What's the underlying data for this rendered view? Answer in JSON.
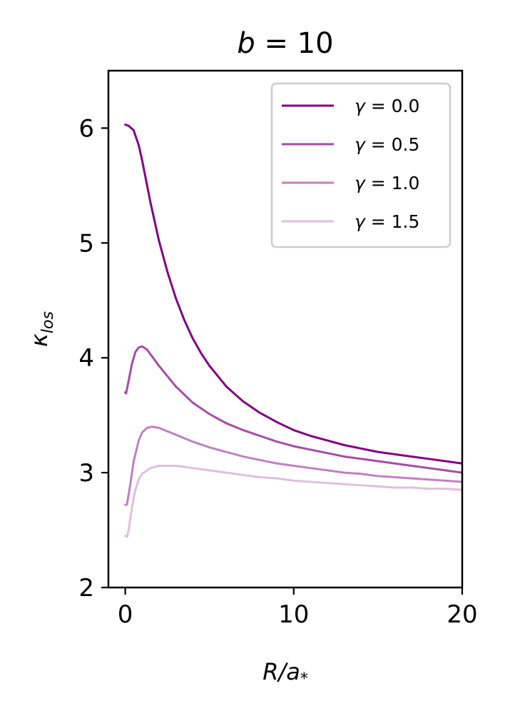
{
  "chart_data": {
    "type": "line",
    "title": "b = 10",
    "xlabel": "R/a*",
    "ylabel": "κ_los",
    "xlim": [
      -1,
      20
    ],
    "ylim": [
      2,
      6.5
    ],
    "xticks": [
      0,
      10,
      20
    ],
    "yticks": [
      2,
      3,
      4,
      5,
      6
    ],
    "grid": false,
    "legend_position": "top-right",
    "series": [
      {
        "name": "γ = 0.0",
        "color": "#800080",
        "points": [
          [
            0,
            6.03
          ],
          [
            0.2,
            6.02
          ],
          [
            0.5,
            5.98
          ],
          [
            0.8,
            5.85
          ],
          [
            1.0,
            5.72
          ],
          [
            1.5,
            5.35
          ],
          [
            2.0,
            5.02
          ],
          [
            2.5,
            4.75
          ],
          [
            3.0,
            4.52
          ],
          [
            3.5,
            4.33
          ],
          [
            4.0,
            4.17
          ],
          [
            4.5,
            4.04
          ],
          [
            5.0,
            3.93
          ],
          [
            6.0,
            3.75
          ],
          [
            7.0,
            3.62
          ],
          [
            8.0,
            3.52
          ],
          [
            9.0,
            3.44
          ],
          [
            10.0,
            3.37
          ],
          [
            11.0,
            3.32
          ],
          [
            12.0,
            3.28
          ],
          [
            13.0,
            3.24
          ],
          [
            14.0,
            3.21
          ],
          [
            15.0,
            3.18
          ],
          [
            16.0,
            3.16
          ],
          [
            17.0,
            3.14
          ],
          [
            18.0,
            3.12
          ],
          [
            19.0,
            3.1
          ],
          [
            20.0,
            3.08
          ]
        ]
      },
      {
        "name": "γ = 0.5",
        "color": "#a64ca6",
        "points": [
          [
            0,
            3.7
          ],
          [
            0.05,
            3.69
          ],
          [
            0.2,
            3.8
          ],
          [
            0.4,
            3.95
          ],
          [
            0.6,
            4.05
          ],
          [
            0.8,
            4.09
          ],
          [
            1.0,
            4.1
          ],
          [
            1.3,
            4.07
          ],
          [
            1.6,
            4.01
          ],
          [
            2.0,
            3.93
          ],
          [
            2.5,
            3.84
          ],
          [
            3.0,
            3.75
          ],
          [
            3.5,
            3.68
          ],
          [
            4.0,
            3.61
          ],
          [
            5.0,
            3.51
          ],
          [
            6.0,
            3.43
          ],
          [
            7.0,
            3.37
          ],
          [
            8.0,
            3.32
          ],
          [
            9.0,
            3.27
          ],
          [
            10.0,
            3.23
          ],
          [
            11.0,
            3.2
          ],
          [
            12.0,
            3.17
          ],
          [
            13.0,
            3.14
          ],
          [
            14.0,
            3.12
          ],
          [
            15.0,
            3.1
          ],
          [
            16.0,
            3.08
          ],
          [
            17.0,
            3.06
          ],
          [
            18.0,
            3.04
          ],
          [
            19.0,
            3.02
          ],
          [
            20.0,
            3.0
          ]
        ]
      },
      {
        "name": "γ = 1.0",
        "color": "#c080c0",
        "points": [
          [
            0,
            2.72
          ],
          [
            0.1,
            2.72
          ],
          [
            0.3,
            2.9
          ],
          [
            0.5,
            3.1
          ],
          [
            0.8,
            3.28
          ],
          [
            1.0,
            3.35
          ],
          [
            1.3,
            3.39
          ],
          [
            1.6,
            3.4
          ],
          [
            2.0,
            3.39
          ],
          [
            2.5,
            3.36
          ],
          [
            3.0,
            3.33
          ],
          [
            3.5,
            3.3
          ],
          [
            4.0,
            3.27
          ],
          [
            5.0,
            3.22
          ],
          [
            6.0,
            3.18
          ],
          [
            7.0,
            3.14
          ],
          [
            8.0,
            3.11
          ],
          [
            9.0,
            3.08
          ],
          [
            10.0,
            3.06
          ],
          [
            11.0,
            3.04
          ],
          [
            12.0,
            3.02
          ],
          [
            13.0,
            3.0
          ],
          [
            14.0,
            2.99
          ],
          [
            15.0,
            2.97
          ],
          [
            16.0,
            2.96
          ],
          [
            17.0,
            2.95
          ],
          [
            18.0,
            2.94
          ],
          [
            19.0,
            2.93
          ],
          [
            20.0,
            2.92
          ]
        ]
      },
      {
        "name": "γ = 1.5",
        "color": "#dfbfdf",
        "points": [
          [
            0,
            2.45
          ],
          [
            0.1,
            2.44
          ],
          [
            0.2,
            2.5
          ],
          [
            0.4,
            2.7
          ],
          [
            0.6,
            2.85
          ],
          [
            0.8,
            2.94
          ],
          [
            1.0,
            2.99
          ],
          [
            1.5,
            3.04
          ],
          [
            2.0,
            3.06
          ],
          [
            2.5,
            3.06
          ],
          [
            3.0,
            3.06
          ],
          [
            4.0,
            3.04
          ],
          [
            5.0,
            3.02
          ],
          [
            6.0,
            3.0
          ],
          [
            7.0,
            2.98
          ],
          [
            8.0,
            2.96
          ],
          [
            9.0,
            2.95
          ],
          [
            10.0,
            2.93
          ],
          [
            11.0,
            2.92
          ],
          [
            12.0,
            2.91
          ],
          [
            13.0,
            2.9
          ],
          [
            14.0,
            2.89
          ],
          [
            15.0,
            2.88
          ],
          [
            16.0,
            2.87
          ],
          [
            17.0,
            2.87
          ],
          [
            18.0,
            2.86
          ],
          [
            19.0,
            2.86
          ],
          [
            20.0,
            2.85
          ]
        ]
      }
    ]
  }
}
